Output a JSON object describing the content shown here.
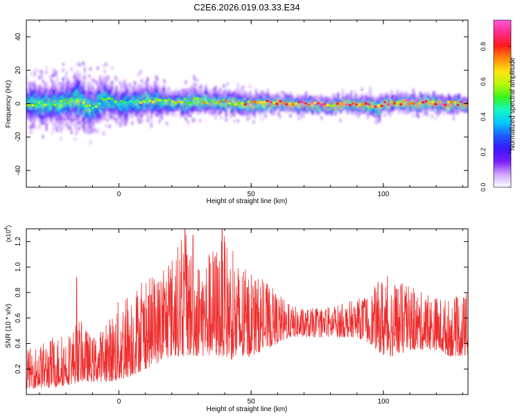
{
  "figure": {
    "title": "C2E6.2026.019.03.33.E34"
  },
  "colorbar": {
    "label": "Normalized spectral amplitude",
    "ticks": [
      "0.0",
      "0.2",
      "0.4",
      "0.6",
      "0.8"
    ],
    "tick_values": [
      0.0,
      0.2,
      0.4,
      0.6,
      0.8
    ],
    "range": [
      0.0,
      0.95
    ],
    "stops": [
      "#ffffff",
      "#cfa6ff",
      "#7a1cff",
      "#3a16ff",
      "#1e5bff",
      "#00c8ff",
      "#13f7c6",
      "#39f21c",
      "#b6f90b",
      "#ffe510",
      "#ff8a0a",
      "#ff1a1a",
      "#ff2a88",
      "#ff57d8"
    ]
  },
  "chart_data": [
    {
      "type": "heatmap",
      "xlabel": "Height of straight line (km)",
      "ylabel": "Frequency (Hz)",
      "xlim": [
        -35,
        132
      ],
      "ylim": [
        -50,
        50
      ],
      "xticks": [
        0,
        50,
        100
      ],
      "xtick_labels": [
        "0",
        "50",
        "100"
      ],
      "yticks": [
        -40,
        -20,
        0,
        20,
        40
      ],
      "ytick_labels": [
        "-40",
        "-20",
        "0",
        "20",
        "40"
      ],
      "grid": false,
      "ridge": {
        "description_free": true,
        "x": [
          -35,
          -25,
          -15,
          -10,
          -5,
          0,
          10,
          20,
          30,
          40,
          50,
          60,
          70,
          80,
          90,
          98,
          100,
          110,
          120,
          132
        ],
        "center": [
          0,
          0,
          3,
          -3,
          3,
          0,
          2,
          1,
          2,
          1,
          0,
          1,
          0,
          -1,
          0,
          -2,
          0,
          1,
          0,
          0
        ],
        "halfwidth": [
          8,
          8,
          9,
          9,
          8,
          7,
          6,
          5,
          5,
          4,
          4,
          3,
          3,
          3,
          3,
          4,
          3,
          3,
          3,
          3
        ],
        "peak_amplitude": [
          0.55,
          0.55,
          0.6,
          0.55,
          0.55,
          0.5,
          0.6,
          0.6,
          0.65,
          0.7,
          0.75,
          0.85,
          0.9,
          0.8,
          0.85,
          0.75,
          0.8,
          0.85,
          0.9,
          0.85
        ]
      }
    },
    {
      "type": "line",
      "xlabel": "Height of straight line (km)",
      "ylabel": "SNR (10 * v/v)",
      "y_multiplier_label": "(x10",
      "y_multiplier_exp": "4",
      "y_multiplier_suffix": ")",
      "xlim": [
        -35,
        132
      ],
      "ylim": [
        0,
        1.3
      ],
      "xticks": [
        0,
        50,
        100
      ],
      "xtick_labels": [
        "0",
        "50",
        "100"
      ],
      "yticks": [
        0.2,
        0.4,
        0.6,
        0.8,
        1.0,
        1.2
      ],
      "ytick_labels": [
        "0.2",
        "0.4",
        "0.6",
        "0.8",
        "1.0",
        "1.2"
      ],
      "grid": false,
      "color": "#ee2c2c",
      "series": [
        {
          "x": [
            -35,
            -25,
            -18,
            -15,
            -10,
            -5,
            0,
            5,
            10,
            15,
            20,
            25,
            30,
            35,
            40,
            45,
            50,
            55,
            60,
            65,
            70,
            75,
            80,
            85,
            90,
            95,
            100,
            105,
            110,
            115,
            120,
            125,
            132
          ],
          "envelope_low": [
            0.05,
            0.05,
            0.08,
            0.1,
            0.1,
            0.1,
            0.1,
            0.15,
            0.2,
            0.25,
            0.3,
            0.3,
            0.3,
            0.3,
            0.3,
            0.25,
            0.3,
            0.35,
            0.4,
            0.45,
            0.45,
            0.45,
            0.45,
            0.45,
            0.45,
            0.4,
            0.3,
            0.3,
            0.35,
            0.35,
            0.35,
            0.3,
            0.3
          ],
          "envelope_high": [
            0.35,
            0.45,
            0.5,
            0.6,
            0.45,
            0.55,
            0.75,
            0.85,
            0.9,
            0.95,
            1.1,
            1.28,
            1.05,
            1.15,
            1.25,
            1.05,
            0.95,
            0.9,
            0.8,
            0.7,
            0.68,
            0.68,
            0.7,
            0.72,
            0.75,
            0.8,
            0.95,
            0.9,
            0.85,
            0.8,
            0.78,
            0.75,
            0.8
          ],
          "spikes": [
            {
              "x": -16,
              "y": 0.92
            },
            {
              "x": 25,
              "y": 1.3
            },
            {
              "x": 39,
              "y": 1.3
            },
            {
              "x": 28,
              "y": 1.25
            }
          ]
        }
      ]
    }
  ]
}
